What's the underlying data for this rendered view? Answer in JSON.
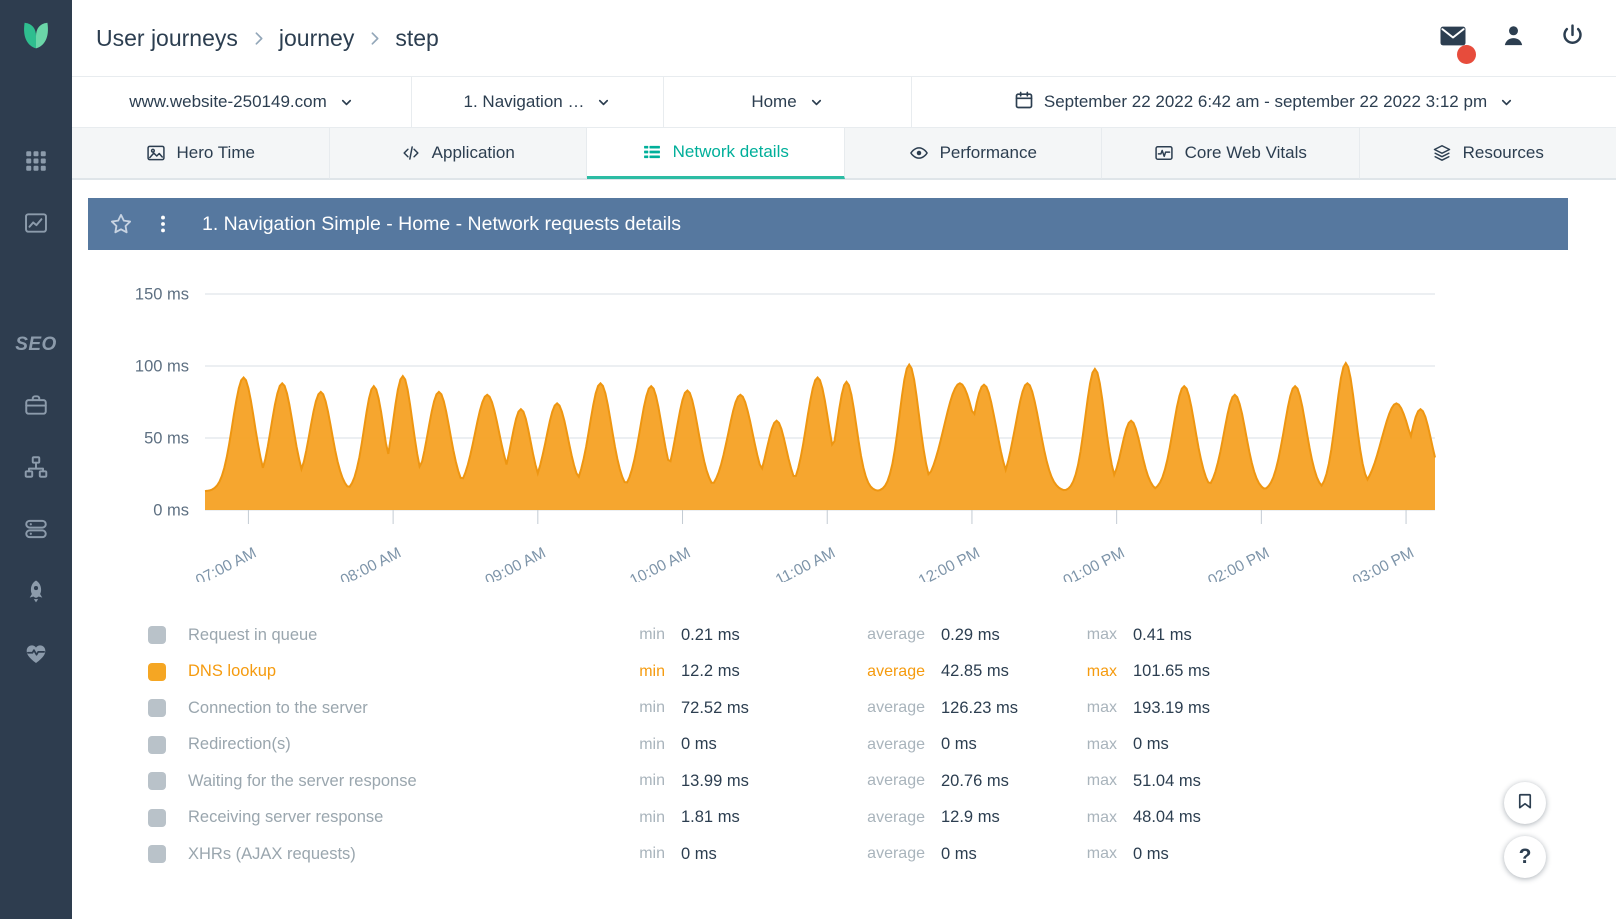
{
  "colors": {
    "accent_teal": "#00AF9A",
    "series_orange": "#F6A124",
    "panel_header_blue": "#56789F",
    "sidebar_bg": "#2E3D4F",
    "notification_red": "#E74C3C"
  },
  "sidebar": {
    "items": [
      {
        "icon": "apps-grid-icon"
      },
      {
        "icon": "analytics-chart-icon"
      },
      {
        "text": "SEO"
      },
      {
        "icon": "briefcase-icon"
      },
      {
        "icon": "sitemap-icon"
      },
      {
        "icon": "server-icon"
      },
      {
        "icon": "rocket-icon"
      },
      {
        "icon": "health-pulse-icon"
      }
    ]
  },
  "header": {
    "breadcrumb": [
      "User journeys",
      "journey",
      "step"
    ]
  },
  "filters": {
    "website": "www.website-250149.com",
    "journey": "1. Navigation …",
    "step": "Home",
    "date_range": "September 22 2022 6:42 am - september 22 2022 3:12 pm"
  },
  "tabs": [
    {
      "label": "Hero Time",
      "icon": "hero-time-image-icon",
      "active": false
    },
    {
      "label": "Application",
      "icon": "application-code-icon",
      "active": false
    },
    {
      "label": "Network details",
      "icon": "network-list-icon",
      "active": true
    },
    {
      "label": "Performance",
      "icon": "performance-eye-icon",
      "active": false
    },
    {
      "label": "Core Web Vitals",
      "icon": "core-web-vitals-icon",
      "active": false
    },
    {
      "label": "Resources",
      "icon": "resources-stack-icon",
      "active": false
    }
  ],
  "panel": {
    "title": "1. Navigation Simple - Home - Network requests details"
  },
  "chart_data": {
    "type": "area",
    "title": "1. Navigation Simple - Home - Network requests details",
    "y_unit": "ms",
    "ylim": [
      0,
      160
    ],
    "y_ticks": [
      0,
      50,
      100,
      150
    ],
    "grid": true,
    "legend_position": "below",
    "x_start_min": 0,
    "x_end_min": 510,
    "x_ticks": [
      {
        "t": 18,
        "label": "07:00 AM"
      },
      {
        "t": 78,
        "label": "08:00 AM"
      },
      {
        "t": 138,
        "label": "09:00 AM"
      },
      {
        "t": 198,
        "label": "10:00 AM"
      },
      {
        "t": 258,
        "label": "11:00 AM"
      },
      {
        "t": 318,
        "label": "12:00 PM"
      },
      {
        "t": 378,
        "label": "01:00 PM"
      },
      {
        "t": 438,
        "label": "02:00 PM"
      },
      {
        "t": 498,
        "label": "03:00 PM"
      }
    ],
    "series": [
      {
        "name": "DNS lookup",
        "color": "#F6A124",
        "stroke": "#EE9611",
        "baseline_ms": 13,
        "min_ms": 12.2,
        "average_ms": 42.85,
        "max_ms": 101.65,
        "peaks": [
          {
            "t": 16,
            "v": 92,
            "w": 9
          },
          {
            "t": 32,
            "v": 88,
            "w": 9
          },
          {
            "t": 48,
            "v": 82,
            "w": 9
          },
          {
            "t": 70,
            "v": 86,
            "w": 8
          },
          {
            "t": 82,
            "v": 93,
            "w": 8
          },
          {
            "t": 97,
            "v": 82,
            "w": 9
          },
          {
            "t": 117,
            "v": 80,
            "w": 10
          },
          {
            "t": 131,
            "v": 70,
            "w": 8
          },
          {
            "t": 146,
            "v": 74,
            "w": 9
          },
          {
            "t": 164,
            "v": 88,
            "w": 9
          },
          {
            "t": 185,
            "v": 86,
            "w": 9
          },
          {
            "t": 200,
            "v": 83,
            "w": 9
          },
          {
            "t": 222,
            "v": 80,
            "w": 10
          },
          {
            "t": 237,
            "v": 62,
            "w": 8
          },
          {
            "t": 254,
            "v": 92,
            "w": 9
          },
          {
            "t": 266,
            "v": 89,
            "w": 8
          },
          {
            "t": 292,
            "v": 101,
            "w": 8
          },
          {
            "t": 313,
            "v": 88,
            "w": 13
          },
          {
            "t": 323,
            "v": 87,
            "w": 10
          },
          {
            "t": 341,
            "v": 88,
            "w": 10
          },
          {
            "t": 369,
            "v": 98,
            "w": 8
          },
          {
            "t": 384,
            "v": 62,
            "w": 8
          },
          {
            "t": 406,
            "v": 86,
            "w": 9
          },
          {
            "t": 427,
            "v": 80,
            "w": 9
          },
          {
            "t": 452,
            "v": 86,
            "w": 9
          },
          {
            "t": 473,
            "v": 102,
            "w": 8
          },
          {
            "t": 494,
            "v": 74,
            "w": 12
          },
          {
            "t": 504,
            "v": 70,
            "w": 9
          }
        ]
      }
    ]
  },
  "legend": {
    "labels": {
      "min": "min",
      "average": "average",
      "max": "max"
    },
    "rows": [
      {
        "name": "Request in queue",
        "color": "#B9C2C9",
        "active": false,
        "min": "0.21 ms",
        "average": "0.29 ms",
        "max": "0.41 ms"
      },
      {
        "name": "DNS lookup",
        "color": "#F5A623",
        "active": true,
        "min": "12.2 ms",
        "average": "42.85 ms",
        "max": "101.65 ms"
      },
      {
        "name": "Connection to the server",
        "color": "#B9C2C9",
        "active": false,
        "min": "72.52 ms",
        "average": "126.23 ms",
        "max": "193.19 ms"
      },
      {
        "name": "Redirection(s)",
        "color": "#B9C2C9",
        "active": false,
        "min": "0 ms",
        "average": "0 ms",
        "max": "0 ms"
      },
      {
        "name": "Waiting for the server response",
        "color": "#B9C2C9",
        "active": false,
        "min": "13.99 ms",
        "average": "20.76 ms",
        "max": "51.04 ms"
      },
      {
        "name": "Receiving server response",
        "color": "#B9C2C9",
        "active": false,
        "min": "1.81 ms",
        "average": "12.9 ms",
        "max": "48.04 ms"
      },
      {
        "name": "XHRs (AJAX requests)",
        "color": "#B9C2C9",
        "active": false,
        "min": "0 ms",
        "average": "0 ms",
        "max": "0 ms"
      }
    ]
  },
  "floating_buttons": {
    "help_label": "?"
  }
}
